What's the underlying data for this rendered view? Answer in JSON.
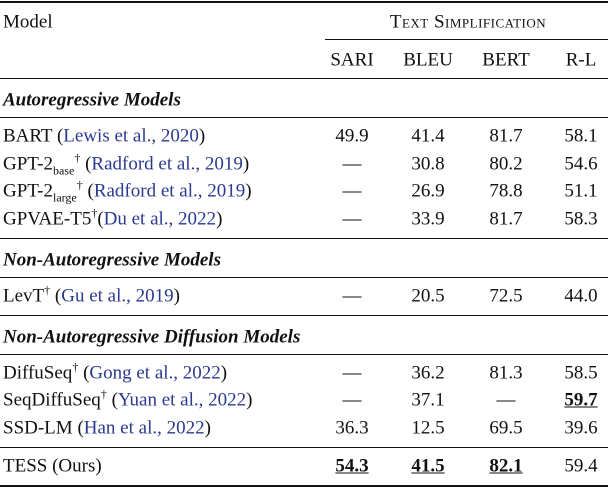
{
  "header": {
    "model": "Model",
    "group": "Text Simplification",
    "columns": [
      "SARI",
      "BLEU",
      "BERT",
      "R-L"
    ]
  },
  "sections": [
    {
      "title": "Autoregressive Models",
      "rows": [
        {
          "name": "BART",
          "pre": " (",
          "cite": "Lewis et al., 2020",
          "post": ")",
          "values": [
            "49.9",
            "41.4",
            "81.7",
            "58.1"
          ]
        },
        {
          "name": "GPT-2",
          "sub": "base",
          "sup": "†",
          "pre": " (",
          "cite": "Radford et al., 2019",
          "post": ")",
          "values": [
            "—",
            "30.8",
            "80.2",
            "54.6"
          ]
        },
        {
          "name": "GPT-2",
          "sub": "large",
          "sup": "†",
          "pre": " (",
          "cite": "Radford et al., 2019",
          "post": ")",
          "values": [
            "—",
            "26.9",
            "78.8",
            "51.1"
          ]
        },
        {
          "name": "GPVAE-T5",
          "sup": "†",
          "pre": "(",
          "cite": "Du et al., 2022",
          "post": ")",
          "values": [
            "—",
            "33.9",
            "81.7",
            "58.3"
          ]
        }
      ]
    },
    {
      "title": "Non-Autoregressive Models",
      "rows": [
        {
          "name": "LevT",
          "sup": "†",
          "pre": " (",
          "cite": "Gu et al., 2019",
          "post": ")",
          "values": [
            "—",
            "20.5",
            "72.5",
            "44.0"
          ]
        }
      ]
    },
    {
      "title": "Non-Autoregressive Diffusion Models",
      "rows": [
        {
          "name": "DiffuSeq",
          "sup": "†",
          "pre": " (",
          "cite": "Gong et al., 2022",
          "post": ")",
          "values": [
            "—",
            "36.2",
            "81.3",
            "58.5"
          ]
        },
        {
          "name": "SeqDiffuSeq",
          "sup": "†",
          "pre": " (",
          "cite": "Yuan et al., 2022",
          "post": ")",
          "values": [
            "—",
            "37.1",
            "—",
            {
              "text": "59.7",
              "best": true
            }
          ]
        },
        {
          "name": "SSD-LM",
          "pre": " (",
          "cite": "Han et al., 2022",
          "post": ")",
          "values": [
            "36.3",
            "12.5",
            "69.5",
            "39.6"
          ]
        }
      ]
    }
  ],
  "final_row": {
    "name": "TESS (Ours)",
    "values": [
      {
        "text": "54.3",
        "best": true
      },
      {
        "text": "41.5",
        "best": true
      },
      {
        "text": "82.1",
        "best": true
      },
      "59.4"
    ]
  }
}
